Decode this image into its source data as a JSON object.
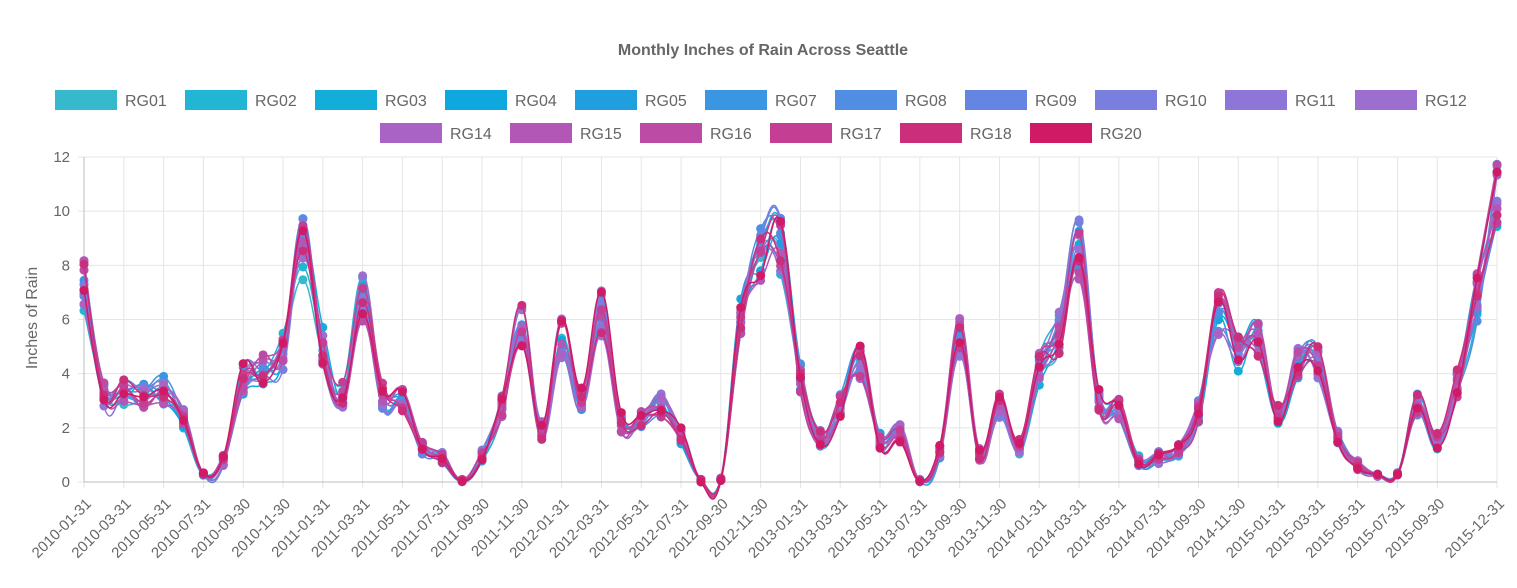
{
  "chart_data": {
    "type": "line",
    "title": "Monthly Inches of Rain Across Seattle",
    "ylabel": "Inches of Rain",
    "xlabel": "",
    "ylim": [
      0,
      12
    ],
    "y_ticks": [
      0,
      2,
      4,
      6,
      8,
      10,
      12
    ],
    "grid": true,
    "legend_position": "top",
    "x": [
      "2010-01-31",
      "2010-02-28",
      "2010-03-31",
      "2010-04-30",
      "2010-05-31",
      "2010-06-30",
      "2010-07-31",
      "2010-08-31",
      "2010-09-30",
      "2010-10-31",
      "2010-11-30",
      "2010-12-31",
      "2011-01-31",
      "2011-02-28",
      "2011-03-31",
      "2011-04-30",
      "2011-05-31",
      "2011-06-30",
      "2011-07-31",
      "2011-08-31",
      "2011-09-30",
      "2011-10-31",
      "2011-11-30",
      "2011-12-31",
      "2012-01-31",
      "2012-02-29",
      "2012-03-31",
      "2012-04-30",
      "2012-05-31",
      "2012-06-30",
      "2012-07-31",
      "2012-08-31",
      "2012-09-30",
      "2012-10-31",
      "2012-11-30",
      "2012-12-31",
      "2013-01-31",
      "2013-02-28",
      "2013-03-31",
      "2013-04-30",
      "2013-05-31",
      "2013-06-30",
      "2013-07-31",
      "2013-08-31",
      "2013-09-30",
      "2013-10-31",
      "2013-11-30",
      "2013-12-31",
      "2014-01-31",
      "2014-02-28",
      "2014-03-31",
      "2014-04-30",
      "2014-05-31",
      "2014-06-30",
      "2014-07-31",
      "2014-08-31",
      "2014-09-30",
      "2014-10-31",
      "2014-11-30",
      "2014-12-31",
      "2015-01-31",
      "2015-02-28",
      "2015-03-31",
      "2015-04-30",
      "2015-05-31",
      "2015-06-30",
      "2015-07-31",
      "2015-08-31",
      "2015-09-30",
      "2015-10-31",
      "2015-11-30",
      "2015-12-31"
    ],
    "x_tick_labels": [
      "2010-01-31",
      "2010-03-31",
      "2010-05-31",
      "2010-07-31",
      "2010-09-30",
      "2010-11-30",
      "2011-01-31",
      "2011-03-31",
      "2011-05-31",
      "2011-07-31",
      "2011-09-30",
      "2011-11-30",
      "2012-01-31",
      "2012-03-31",
      "2012-05-31",
      "2012-07-31",
      "2012-09-30",
      "2012-11-30",
      "2013-01-31",
      "2013-03-31",
      "2013-05-31",
      "2013-07-31",
      "2013-09-30",
      "2013-11-30",
      "2014-01-31",
      "2014-03-31",
      "2014-05-31",
      "2014-07-31",
      "2014-09-30",
      "2014-11-30",
      "2015-01-31",
      "2015-03-31",
      "2015-05-31",
      "2015-07-31",
      "2015-09-30",
      "2015-12-31"
    ],
    "base": [
      7.2,
      3.3,
      3.3,
      3.2,
      3.4,
      2.3,
      0.3,
      0.8,
      3.8,
      4.1,
      4.8,
      8.6,
      5.0,
      3.2,
      6.8,
      3.2,
      3.0,
      1.2,
      0.9,
      0.05,
      1.0,
      2.8,
      5.8,
      1.9,
      5.3,
      3.1,
      6.2,
      2.2,
      2.3,
      2.8,
      1.7,
      0.05,
      0.1,
      6.0,
      8.4,
      8.8,
      3.8,
      1.6,
      2.8,
      4.4,
      1.5,
      1.8,
      0.05,
      1.1,
      5.3,
      1.0,
      2.8,
      1.3,
      4.2,
      5.5,
      8.6,
      3.0,
      2.7,
      0.8,
      0.9,
      1.2,
      2.6,
      6.3,
      4.7,
      5.4,
      2.6,
      4.4,
      4.4,
      1.7,
      0.6,
      0.25,
      0.3,
      2.9,
      1.5,
      3.6,
      6.8,
      10.4
    ],
    "series": [
      {
        "name": "RG01",
        "color": "#36b9cc",
        "seed": 1
      },
      {
        "name": "RG02",
        "color": "#22b5d4",
        "seed": 2
      },
      {
        "name": "RG03",
        "color": "#12add9",
        "seed": 3
      },
      {
        "name": "RG04",
        "color": "#0ea7df",
        "seed": 4
      },
      {
        "name": "RG05",
        "color": "#1f9fe0",
        "seed": 5
      },
      {
        "name": "RG07",
        "color": "#3a96e2",
        "seed": 6
      },
      {
        "name": "RG08",
        "color": "#4f8ee3",
        "seed": 7
      },
      {
        "name": "RG09",
        "color": "#6486e2",
        "seed": 8
      },
      {
        "name": "RG10",
        "color": "#7a7fdf",
        "seed": 9
      },
      {
        "name": "RG11",
        "color": "#8d76d8",
        "seed": 10
      },
      {
        "name": "RG12",
        "color": "#9b6ecf",
        "seed": 11
      },
      {
        "name": "RG14",
        "color": "#a863c4",
        "seed": 12
      },
      {
        "name": "RG15",
        "color": "#b357b6",
        "seed": 13
      },
      {
        "name": "RG16",
        "color": "#bc4ba5",
        "seed": 14
      },
      {
        "name": "RG17",
        "color": "#c43f93",
        "seed": 15
      },
      {
        "name": "RG18",
        "color": "#cb2f7c",
        "seed": 16
      },
      {
        "name": "RG20",
        "color": "#d01a66",
        "seed": 17
      }
    ]
  }
}
